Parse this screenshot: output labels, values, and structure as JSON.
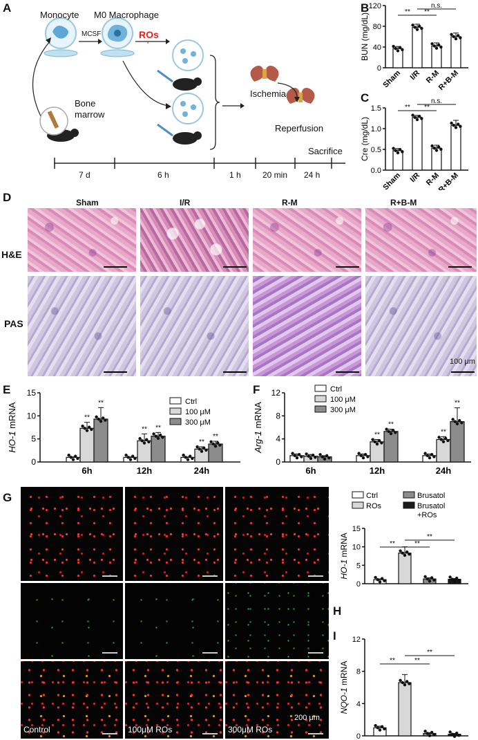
{
  "panels": {
    "A": "A",
    "B": "B",
    "C": "C",
    "D": "D",
    "E": "E",
    "F": "F",
    "G": "G",
    "H": "H",
    "I": "I"
  },
  "schematic": {
    "monocyte": "Monocyte",
    "m0": "M0 Macrophage",
    "mcsf": "MCSF",
    "ros": "ROs",
    "bone_marrow_1": "Bone",
    "bone_marrow_2": "marrow",
    "ischemia": "Ischemia",
    "reperfusion": "Reperfusion",
    "sacrifice": "Sacrifice",
    "timeline": [
      "7 d",
      "6 h",
      "1 h",
      "20 min",
      "24 h"
    ]
  },
  "histology": {
    "columns": [
      "Sham",
      "I/R",
      "R-M",
      "R+B-M"
    ],
    "rows": [
      "H&E",
      "PAS"
    ],
    "scalebar": "100 μm"
  },
  "fluorescence": {
    "labels": [
      "Control",
      "100μM ROs",
      "300μM ROs"
    ],
    "scalebar": "200 μm"
  },
  "colors": {
    "bar_white": "#ffffff",
    "bar_light": "#d8d8d8",
    "bar_dark": "#8c8c8c",
    "bar_black": "#1a1a1a",
    "ros_red": "#e8231f"
  },
  "chart_data": [
    {
      "id": "B",
      "type": "bar",
      "categories": [
        "Sham",
        "I/R",
        "R-M",
        "R+B-M"
      ],
      "values": [
        37,
        78,
        42,
        60
      ],
      "errors": [
        4,
        6,
        6,
        7
      ],
      "ylabel": "BUN (mg/dL)",
      "ylim": [
        0,
        120
      ],
      "yticks": [
        0,
        40,
        80,
        120
      ],
      "annotations": [
        {
          "between": [
            "Sham",
            "I/R"
          ],
          "text": "**"
        },
        {
          "between": [
            "I/R",
            "R-M"
          ],
          "text": "**"
        },
        {
          "between": [
            "I/R",
            "R+B-M"
          ],
          "text": "n.s."
        }
      ]
    },
    {
      "id": "C",
      "type": "bar",
      "categories": [
        "Sham",
        "I/R",
        "R-M",
        "R+B-M"
      ],
      "values": [
        0.47,
        1.27,
        0.53,
        1.08
      ],
      "errors": [
        0.05,
        0.05,
        0.07,
        0.12
      ],
      "ylabel": "Cre (mg/dL)",
      "ylim": [
        0,
        1.5
      ],
      "yticks": [
        "0.0",
        "0.5",
        "1.0",
        "1.5"
      ],
      "annotations": [
        {
          "between": [
            "Sham",
            "I/R"
          ],
          "text": "**"
        },
        {
          "between": [
            "I/R",
            "R-M"
          ],
          "text": "**"
        },
        {
          "between": [
            "I/R",
            "R+B-M"
          ],
          "text": "n.s."
        }
      ]
    },
    {
      "id": "E",
      "type": "bar",
      "categories": [
        "6h",
        "12h",
        "24h"
      ],
      "series": [
        {
          "name": "Ctrl",
          "values": [
            1.0,
            1.0,
            1.0
          ],
          "errors": [
            0.1,
            0.1,
            0.1
          ]
        },
        {
          "name": "100 μM",
          "values": [
            7.3,
            4.6,
            2.8
          ],
          "errors": [
            1.3,
            1.5,
            0.5
          ]
        },
        {
          "name": "300 μM",
          "values": [
            9.3,
            5.6,
            3.9
          ],
          "errors": [
            2.5,
            0.8,
            0.6
          ]
        }
      ],
      "ylabel_italic": "HO-1",
      "ylabel": " mRNA",
      "ylim": [
        0,
        15
      ],
      "yticks": [
        0,
        5,
        10,
        15
      ],
      "sig": "**"
    },
    {
      "id": "F",
      "type": "bar",
      "categories": [
        "6h",
        "12h",
        "24h"
      ],
      "series": [
        {
          "name": "Ctrl",
          "values": [
            1.1,
            1.1,
            1.1
          ],
          "errors": [
            0.3,
            0.3,
            0.3
          ]
        },
        {
          "name": "100 μM",
          "values": [
            1.0,
            3.5,
            3.9
          ],
          "errors": [
            0.3,
            0.4,
            0.5
          ]
        },
        {
          "name": "300 μM",
          "values": [
            0.9,
            5.3,
            7.0
          ],
          "errors": [
            0.2,
            0.4,
            2.4
          ]
        }
      ],
      "ylabel_italic": "Arg-1",
      "ylabel": " mRNA",
      "ylim": [
        0,
        12
      ],
      "yticks": [
        0,
        4,
        8,
        12
      ],
      "sig": "**"
    },
    {
      "id": "H",
      "type": "bar",
      "categories": [
        "Ctrl",
        "ROs",
        "Brusatol",
        "Brusatol +ROs"
      ],
      "legend": [
        "Ctrl",
        "ROs",
        "Brusatol",
        "Brusatol",
        "+ROs"
      ],
      "values": [
        1.1,
        8.3,
        1.3,
        1.2
      ],
      "errors": [
        0.2,
        1.7,
        0.3,
        0.2
      ],
      "ylabel_italic": "HO-1",
      "ylabel": " mRNA",
      "ylim": [
        0,
        15
      ],
      "yticks": [
        0,
        5,
        10,
        15
      ],
      "sig": "**"
    },
    {
      "id": "I",
      "type": "bar",
      "categories": [
        "Ctrl",
        "ROs",
        "Brusatol",
        "Brusatol +ROs"
      ],
      "values": [
        1.0,
        6.6,
        0.3,
        0.2
      ],
      "errors": [
        0.2,
        1.0,
        0.1,
        0.1
      ],
      "ylabel_italic": "NQO-1",
      "ylabel": " mRNA",
      "ylim": [
        0,
        12
      ],
      "yticks": [
        0,
        4,
        8,
        12
      ],
      "sig": "**"
    }
  ]
}
